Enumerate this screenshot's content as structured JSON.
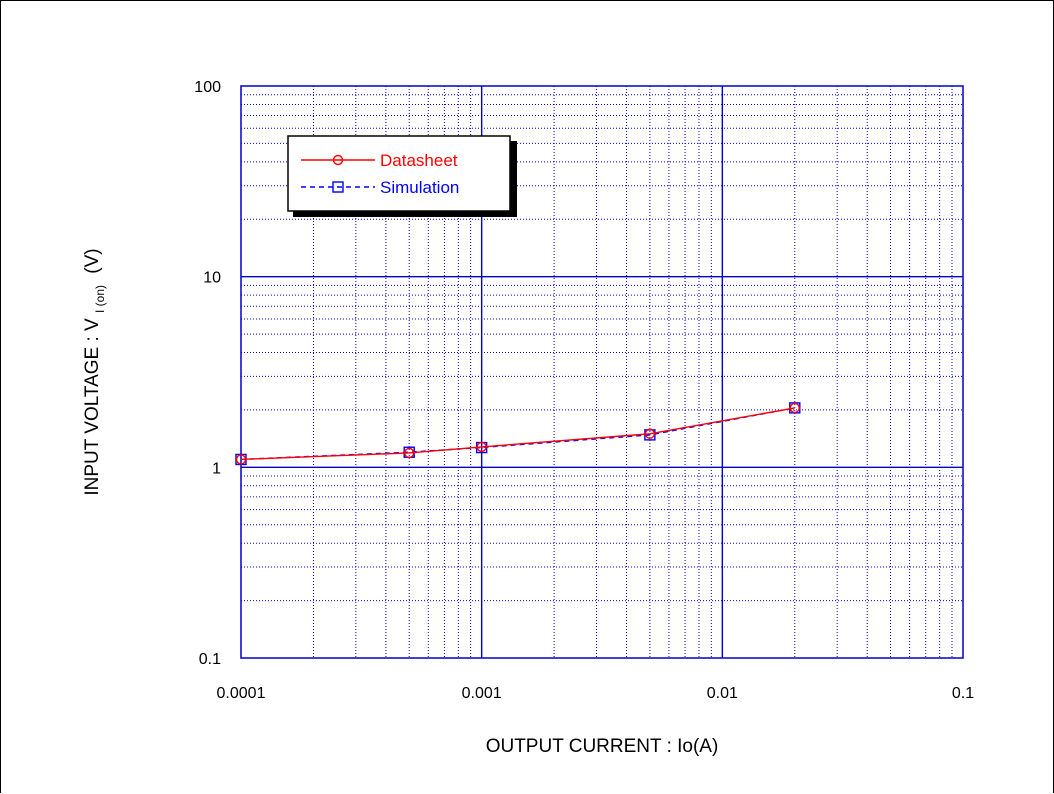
{
  "chart_data": {
    "type": "line",
    "xscale": "log",
    "yscale": "log",
    "xlim": [
      0.0001,
      0.1
    ],
    "ylim": [
      0.1,
      100
    ],
    "x_ticks": [
      "0.0001",
      "0.001",
      "0.01",
      "0.1"
    ],
    "y_ticks": [
      "100",
      "10",
      "1",
      "0.1"
    ],
    "xlabel": "OUTPUT CURRENT : Io(A)",
    "ylabel": {
      "main": "INPUT VOLTAGE : V",
      "subscript": "I (on)",
      "unit": "(V)"
    },
    "grid": true,
    "legend_position": "top-left",
    "series": [
      {
        "name": "Datasheet",
        "color": "#ff0000",
        "line_style": "solid",
        "marker": "circle",
        "x": [
          0.0001,
          0.0005,
          0.001,
          0.005,
          0.02
        ],
        "y": [
          1.1,
          1.19,
          1.28,
          1.5,
          2.05
        ]
      },
      {
        "name": "Simulation",
        "color": "#0000ff",
        "line_style": "dashed",
        "marker": "square",
        "x": [
          0.0001,
          0.0005,
          0.001,
          0.005,
          0.02
        ],
        "y": [
          1.1,
          1.2,
          1.27,
          1.48,
          2.05
        ]
      }
    ]
  },
  "colors": {
    "grid": "#0000cc",
    "frame": "#0000cc"
  }
}
